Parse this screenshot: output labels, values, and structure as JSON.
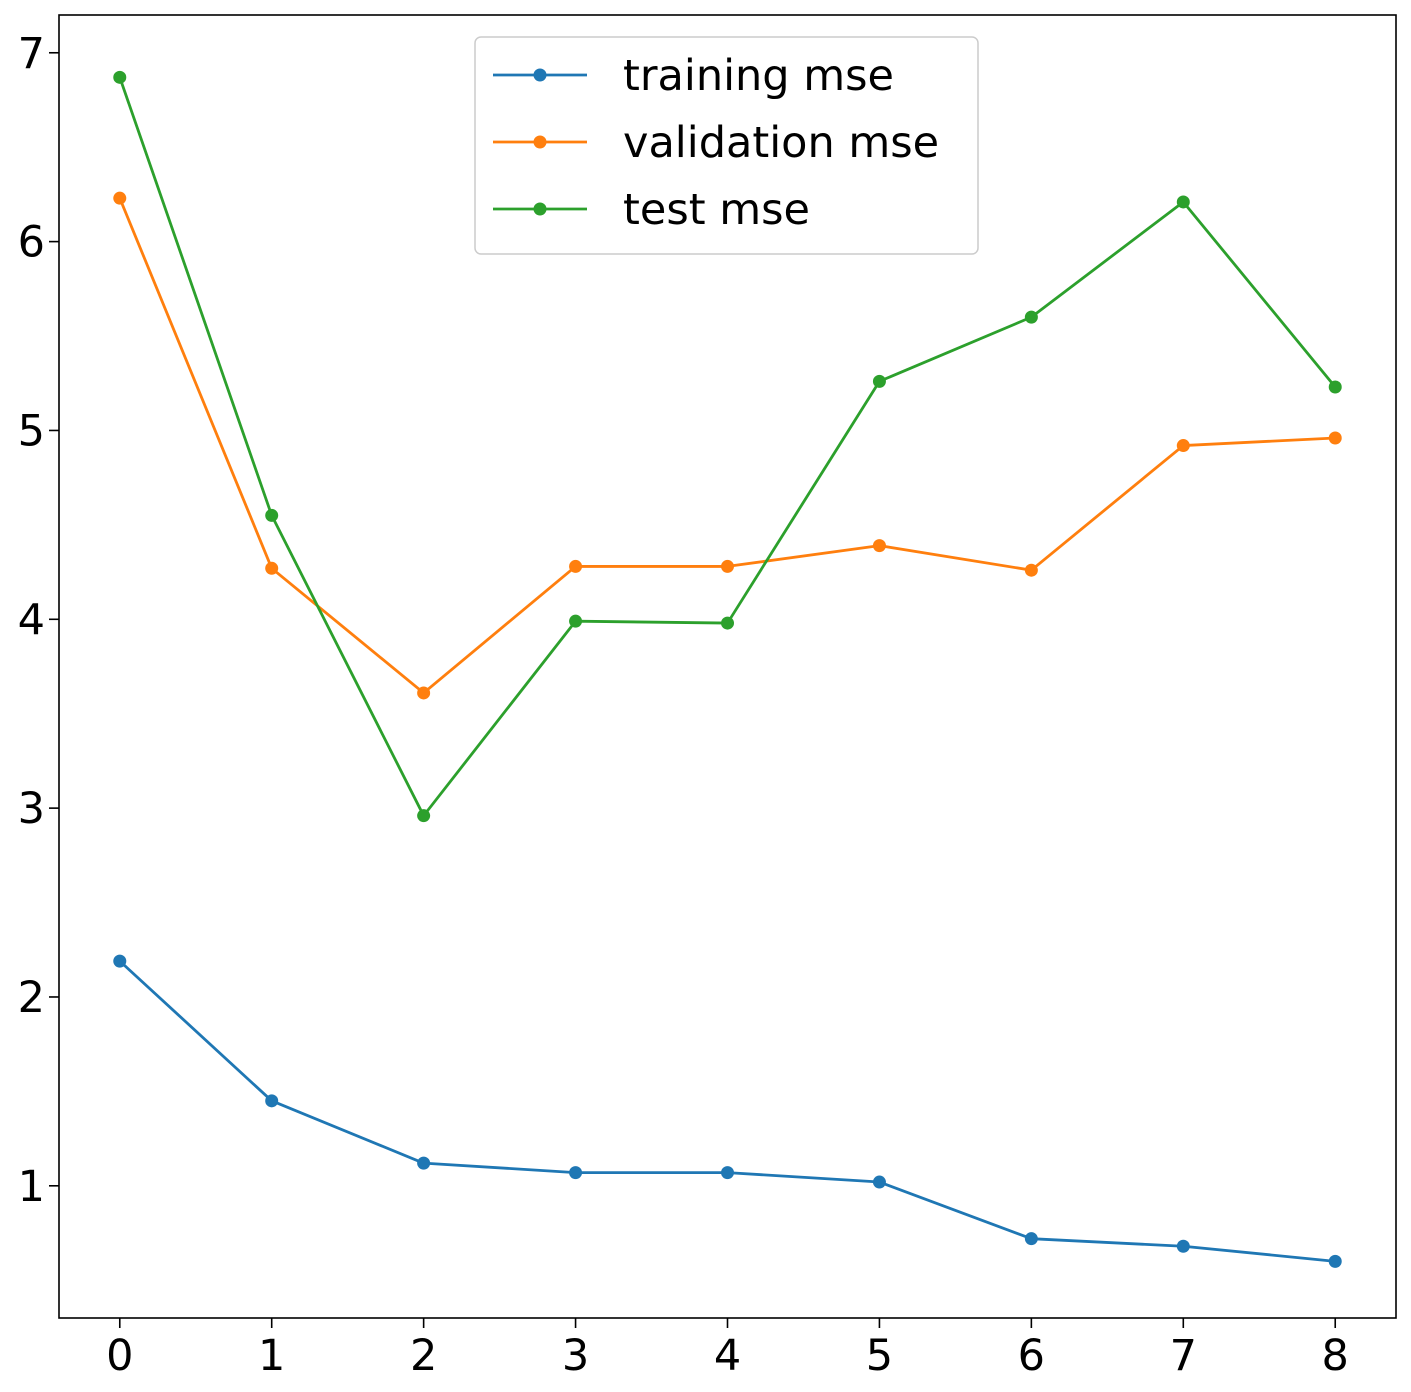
{
  "chart_data": {
    "type": "line",
    "x": [
      0,
      1,
      2,
      3,
      4,
      5,
      6,
      7,
      8
    ],
    "xlim": [
      -0.4,
      8.4
    ],
    "ylim": [
      0.3,
      7.2
    ],
    "xticks": [
      0,
      1,
      2,
      3,
      4,
      5,
      6,
      7,
      8
    ],
    "yticks": [
      1,
      2,
      3,
      4,
      5,
      6,
      7
    ],
    "x_tick_labels": [
      "0",
      "1",
      "2",
      "3",
      "4",
      "5",
      "6",
      "7",
      "8"
    ],
    "y_tick_labels": [
      "1",
      "2",
      "3",
      "4",
      "5",
      "6",
      "7"
    ],
    "grid": false,
    "legend_position": "top-center",
    "series": [
      {
        "name": "training mse",
        "color": "#1f77b4",
        "values": [
          2.19,
          1.45,
          1.12,
          1.07,
          1.07,
          1.02,
          0.72,
          0.68,
          0.6
        ]
      },
      {
        "name": "validation mse",
        "color": "#ff7f0e",
        "values": [
          6.23,
          4.27,
          3.61,
          4.28,
          4.28,
          4.39,
          4.26,
          4.92,
          4.96
        ]
      },
      {
        "name": "test mse",
        "color": "#2ca02c",
        "values": [
          6.87,
          4.55,
          2.96,
          3.99,
          3.98,
          5.26,
          5.6,
          6.21,
          5.23
        ]
      }
    ]
  }
}
